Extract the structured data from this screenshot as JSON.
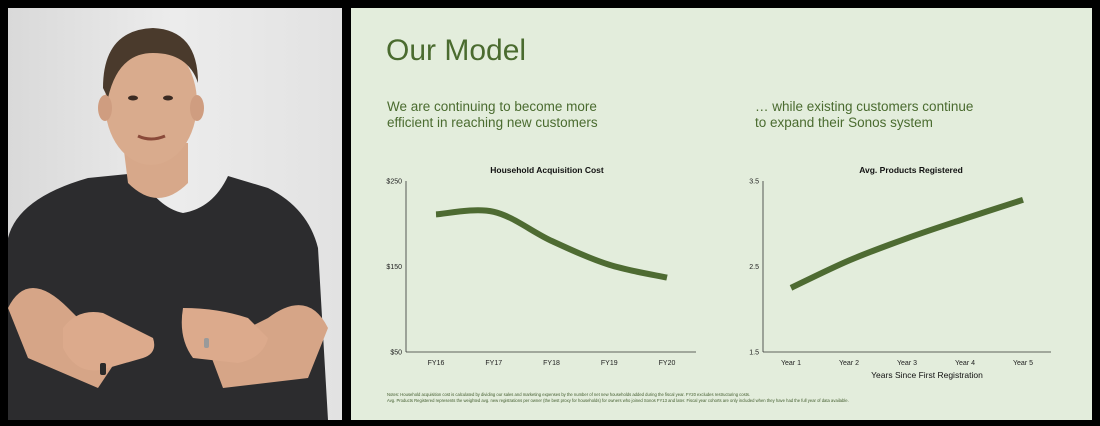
{
  "slide": {
    "title": "Our Model",
    "left_subtitle": "We are continuing to become more\nefficient in reaching new customers",
    "right_subtitle": "… while existing customers continue\nto expand their Sonos system",
    "notes": [
      "Notes: Household acquisition cost is calculated by dividing our sales and marketing expenses by the number of net new households added during the fiscal year. FY20 excludes restructuring costs.",
      "Avg. Products Registered represents the weighted avg. new registrations per owner (the best proxy for households) for owners who joined Sonos FY13 and later. Fiscal year cohorts are only included when they have had the full year of data available."
    ]
  },
  "colors": {
    "slide_bg": "#e3eddc",
    "accent_green": "#4a6b2f",
    "line_green": "#4e6b32"
  },
  "chart_data": [
    {
      "type": "line",
      "title": "Household Acquisition Cost",
      "xlabel": "",
      "ylabel": "",
      "categories": [
        "FY16",
        "FY17",
        "FY18",
        "FY19",
        "FY20"
      ],
      "yticks": [
        "$250",
        "$150",
        "$50"
      ],
      "ylim": [
        50,
        250
      ],
      "grid": false,
      "series": [
        {
          "values": [
            211,
            214,
            180,
            152,
            137
          ]
        }
      ]
    },
    {
      "type": "line",
      "title": "Avg. Products Registered",
      "xlabel": "Years Since First Registration",
      "ylabel": "",
      "categories": [
        "Year 1",
        "Year 2",
        "Year 3",
        "Year 4",
        "Year 5"
      ],
      "yticks": [
        "3.5",
        "2.5",
        "1.5"
      ],
      "ylim": [
        1.5,
        3.5
      ],
      "grid": false,
      "series": [
        {
          "values": [
            2.25,
            2.57,
            2.83,
            3.06,
            3.28
          ]
        }
      ]
    }
  ]
}
